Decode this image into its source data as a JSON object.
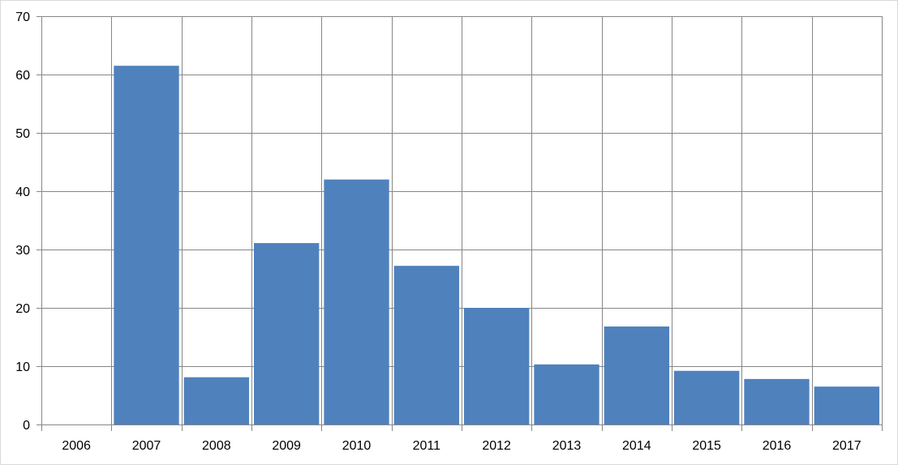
{
  "chart_data": {
    "type": "bar",
    "categories": [
      "2006",
      "2007",
      "2008",
      "2009",
      "2010",
      "2011",
      "2012",
      "2013",
      "2014",
      "2015",
      "2016",
      "2017"
    ],
    "values": [
      0,
      61.5,
      8.1,
      31.1,
      42,
      27.2,
      20,
      10.3,
      16.8,
      9.2,
      7.8,
      6.5
    ],
    "title": "",
    "xlabel": "",
    "ylabel": "",
    "ylim": [
      0,
      70
    ],
    "yticks": [
      "0",
      "10",
      "20",
      "30",
      "40",
      "50",
      "60",
      "70"
    ],
    "grid": true,
    "legend": "none",
    "colors": {
      "bar": "#4f81bd",
      "grid": "#868686",
      "frame": "#868686"
    }
  }
}
